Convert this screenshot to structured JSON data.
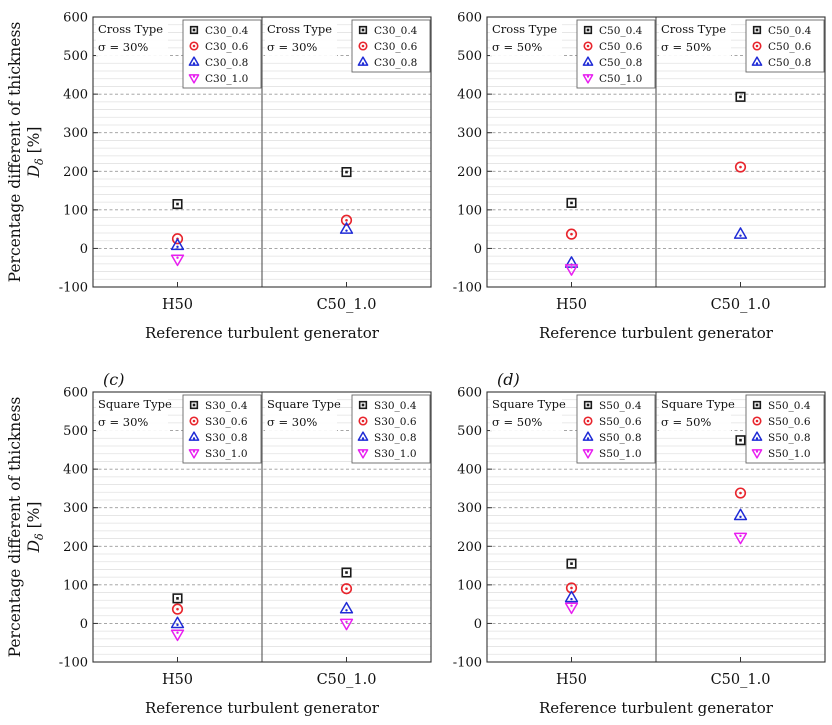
{
  "y_axis_label_line1": "Percentage different of thickness",
  "y_axis_label_symbol": "D",
  "y_axis_label_subscript": "δ",
  "y_axis_label_unit": "[%]",
  "colors": {
    "0.4": "#1a1a1a",
    "0.6": "#e8242c",
    "0.8": "#1f2bd6",
    "1.0": "#e81ff0"
  },
  "chart_data": [
    {
      "type": "scatter",
      "panel_label": "",
      "xlabel": "Reference turbulent generator",
      "ylabel": "Percentage different of thickness D_δ [%]",
      "ylim": [
        -100,
        600
      ],
      "yticks": [
        -100,
        0,
        100,
        200,
        300,
        400,
        500,
        600
      ],
      "categories": [
        "H50",
        "C50_1.0"
      ],
      "annotations": [
        {
          "line1": "Cross Type",
          "line2": "σ = 30%"
        },
        {
          "line1": "Cross Type",
          "line2": "σ = 30%"
        }
      ],
      "legends": [
        [
          "C30_0.4",
          "C30_0.6",
          "C30_0.8",
          "C30_1.0"
        ],
        [
          "C30_0.4",
          "C30_0.6",
          "C30_0.8"
        ]
      ],
      "series": [
        {
          "name": "C30_0.4",
          "marker": "square",
          "key": "0.4",
          "values": [
            115,
            198
          ]
        },
        {
          "name": "C30_0.6",
          "marker": "circle",
          "key": "0.6",
          "values": [
            25,
            73
          ]
        },
        {
          "name": "C30_0.8",
          "marker": "triangle-up",
          "key": "0.8",
          "values": [
            8,
            50
          ]
        },
        {
          "name": "C30_1.0",
          "marker": "triangle-down",
          "key": "1.0",
          "values": [
            -28,
            null
          ]
        }
      ]
    },
    {
      "type": "scatter",
      "panel_label": "",
      "xlabel": "Reference turbulent generator",
      "ylabel": "",
      "ylim": [
        -100,
        600
      ],
      "yticks": [
        -100,
        0,
        100,
        200,
        300,
        400,
        500,
        600
      ],
      "categories": [
        "H50",
        "C50_1.0"
      ],
      "annotations": [
        {
          "line1": "Cross Type",
          "line2": "σ = 50%"
        },
        {
          "line1": "Cross Type",
          "line2": "σ = 50%"
        }
      ],
      "legends": [
        [
          "C50_0.4",
          "C50_0.6",
          "C50_0.8",
          "C50_1.0"
        ],
        [
          "C50_0.4",
          "C50_0.6",
          "C50_0.8"
        ]
      ],
      "series": [
        {
          "name": "C50_0.4",
          "marker": "square",
          "key": "0.4",
          "values": [
            118,
            393
          ]
        },
        {
          "name": "C50_0.6",
          "marker": "circle",
          "key": "0.6",
          "values": [
            37,
            211
          ]
        },
        {
          "name": "C50_0.8",
          "marker": "triangle-up",
          "key": "0.8",
          "values": [
            -38,
            37
          ]
        },
        {
          "name": "C50_1.0",
          "marker": "triangle-down",
          "key": "1.0",
          "values": [
            -53,
            null
          ]
        }
      ]
    },
    {
      "type": "scatter",
      "panel_label": "(c)",
      "xlabel": "Reference turbulent generator",
      "ylabel": "Percentage different of thickness D_δ [%]",
      "ylim": [
        -100,
        600
      ],
      "yticks": [
        -100,
        0,
        100,
        200,
        300,
        400,
        500,
        600
      ],
      "categories": [
        "H50",
        "C50_1.0"
      ],
      "annotations": [
        {
          "line1": "Square Type",
          "line2": "σ = 30%"
        },
        {
          "line1": "Square Type",
          "line2": "σ = 30%"
        }
      ],
      "legends": [
        [
          "S30_0.4",
          "S30_0.6",
          "S30_0.8",
          "S30_1.0"
        ],
        [
          "S30_0.4",
          "S30_0.6",
          "S30_0.8",
          "S30_1.0"
        ]
      ],
      "series": [
        {
          "name": "S30_0.4",
          "marker": "square",
          "key": "0.4",
          "values": [
            65,
            132
          ]
        },
        {
          "name": "S30_0.6",
          "marker": "circle",
          "key": "0.6",
          "values": [
            37,
            90
          ]
        },
        {
          "name": "S30_0.8",
          "marker": "triangle-up",
          "key": "0.8",
          "values": [
            0,
            38
          ]
        },
        {
          "name": "S30_1.0",
          "marker": "triangle-down",
          "key": "1.0",
          "values": [
            -28,
            0
          ]
        }
      ]
    },
    {
      "type": "scatter",
      "panel_label": "(d)",
      "xlabel": "Reference turbulent generator",
      "ylabel": "",
      "ylim": [
        -100,
        600
      ],
      "yticks": [
        -100,
        0,
        100,
        200,
        300,
        400,
        500,
        600
      ],
      "categories": [
        "H50",
        "C50_1.0"
      ],
      "annotations": [
        {
          "line1": "Square Type",
          "line2": "σ = 50%"
        },
        {
          "line1": "Square Type",
          "line2": "σ = 50%"
        }
      ],
      "legends": [
        [
          "S50_0.4",
          "S50_0.6",
          "S50_0.8",
          "S50_1.0"
        ],
        [
          "S50_0.4",
          "S50_0.6",
          "S50_0.8",
          "S50_1.0"
        ]
      ],
      "series": [
        {
          "name": "S50_0.4",
          "marker": "square",
          "key": "0.4",
          "values": [
            155,
            475
          ]
        },
        {
          "name": "S50_0.6",
          "marker": "circle",
          "key": "0.6",
          "values": [
            92,
            338
          ]
        },
        {
          "name": "S50_0.8",
          "marker": "triangle-up",
          "key": "0.8",
          "values": [
            67,
            280
          ]
        },
        {
          "name": "S50_1.0",
          "marker": "triangle-down",
          "key": "1.0",
          "values": [
            42,
            223
          ]
        }
      ]
    }
  ]
}
